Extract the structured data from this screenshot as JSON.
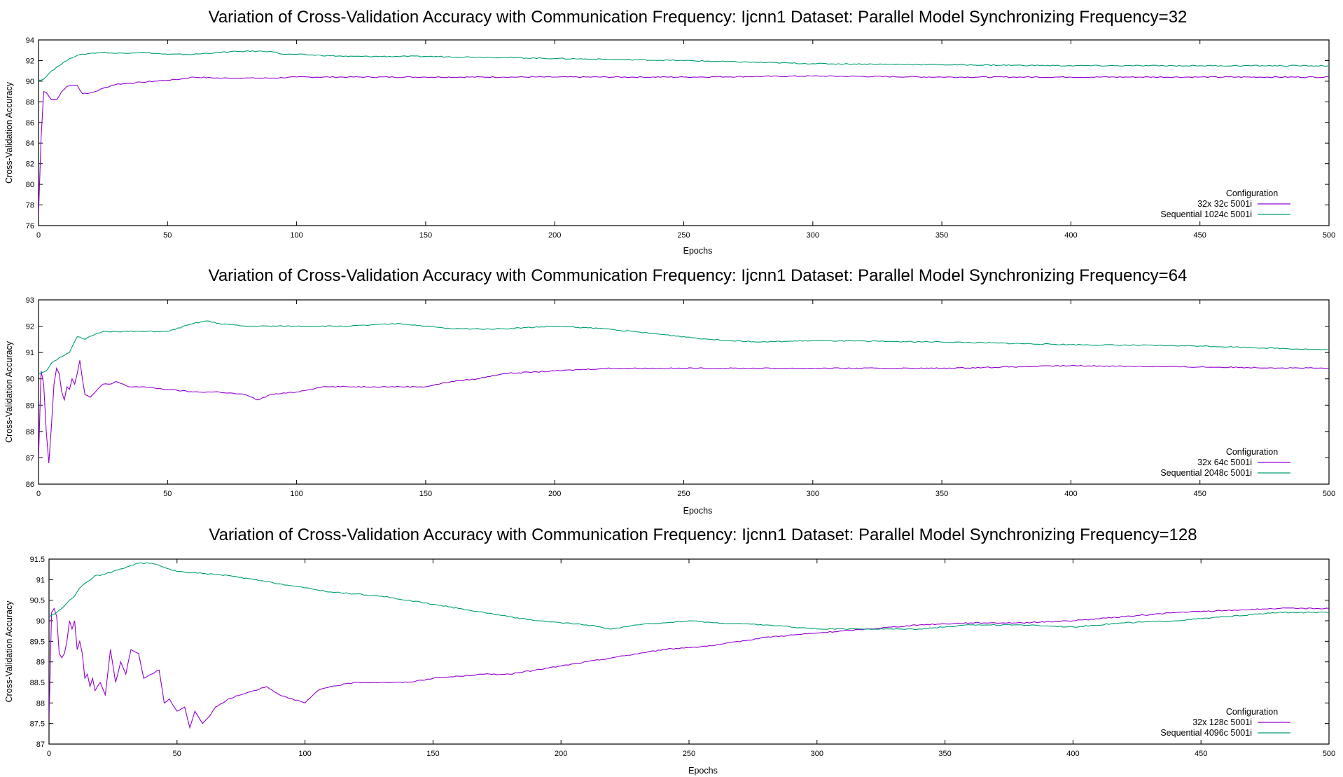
{
  "chart_data": [
    {
      "type": "line",
      "title": "Variation of Cross-Validation Accuracy with Communication Frequency: Ijcnn1 Dataset: Parallel Model Synchronizing Frequency=32",
      "xlabel": "Epochs",
      "ylabel": "Cross-Validation Accuracy",
      "xlim": [
        0,
        500
      ],
      "ylim": [
        76,
        94
      ],
      "xticks": [
        0,
        50,
        100,
        150,
        200,
        250,
        300,
        350,
        400,
        450,
        500
      ],
      "yticks": [
        76,
        78,
        80,
        82,
        84,
        86,
        88,
        90,
        92,
        94
      ],
      "grid": false,
      "legend_title": "Configuration",
      "legend_position": "bottom-right",
      "series": [
        {
          "name": "32x 32c 5001i",
          "color": "#9400d3",
          "x": [
            0,
            1,
            2,
            3,
            5,
            7,
            9,
            11,
            13,
            15,
            17,
            19,
            22,
            26,
            30,
            35,
            40,
            45,
            50,
            55,
            60,
            70,
            80,
            90,
            100,
            120,
            150,
            180,
            200,
            250,
            300,
            350,
            400,
            450,
            500
          ],
          "y": [
            77.0,
            84.5,
            89.0,
            88.9,
            88.2,
            88.2,
            89.0,
            89.5,
            89.6,
            89.6,
            88.8,
            88.8,
            89.0,
            89.4,
            89.7,
            89.8,
            89.9,
            90.0,
            90.1,
            90.2,
            90.4,
            90.3,
            90.3,
            90.3,
            90.4,
            90.4,
            90.4,
            90.4,
            90.4,
            90.4,
            90.5,
            90.4,
            90.4,
            90.4,
            90.4
          ]
        },
        {
          "name": "Sequential 1024c 5001i",
          "color": "#009e73",
          "x": [
            0,
            2,
            5,
            8,
            12,
            15,
            20,
            25,
            30,
            40,
            50,
            60,
            70,
            80,
            90,
            95,
            100,
            120,
            150,
            180,
            200,
            250,
            300,
            350,
            400,
            450,
            500
          ],
          "y": [
            90.1,
            90.2,
            91.0,
            91.5,
            92.2,
            92.5,
            92.7,
            92.8,
            92.7,
            92.8,
            92.6,
            92.6,
            92.8,
            92.9,
            92.9,
            92.6,
            92.6,
            92.4,
            92.4,
            92.3,
            92.2,
            92.0,
            91.7,
            91.6,
            91.5,
            91.5,
            91.5
          ]
        }
      ]
    },
    {
      "type": "line",
      "title": "Variation of Cross-Validation Accuracy with Communication Frequency: Ijcnn1 Dataset: Parallel Model Synchronizing Frequency=64",
      "xlabel": "Epochs",
      "ylabel": "Cross-Validation Accuracy",
      "xlim": [
        0,
        500
      ],
      "ylim": [
        86,
        93
      ],
      "xticks": [
        0,
        50,
        100,
        150,
        200,
        250,
        300,
        350,
        400,
        450,
        500
      ],
      "yticks": [
        86,
        87,
        88,
        89,
        90,
        91,
        92,
        93
      ],
      "grid": false,
      "legend_title": "Configuration",
      "legend_position": "bottom-right",
      "series": [
        {
          "name": "32x 64c 5001i",
          "color": "#9400d3",
          "x": [
            0,
            1,
            2,
            3,
            4,
            5,
            6,
            7,
            8,
            9,
            10,
            11,
            12,
            13,
            14,
            15,
            16,
            17,
            18,
            20,
            22,
            25,
            28,
            30,
            35,
            40,
            50,
            60,
            70,
            80,
            85,
            90,
            100,
            110,
            120,
            130,
            140,
            150,
            160,
            170,
            180,
            200,
            220,
            250,
            300,
            350,
            400,
            450,
            500
          ],
          "y": [
            86.9,
            90.3,
            89.8,
            88.0,
            86.8,
            88.2,
            89.8,
            90.4,
            90.2,
            89.5,
            89.2,
            89.7,
            89.6,
            90.0,
            89.8,
            90.2,
            90.7,
            90.0,
            89.4,
            89.3,
            89.5,
            89.8,
            89.8,
            89.9,
            89.7,
            89.7,
            89.6,
            89.5,
            89.5,
            89.4,
            89.2,
            89.4,
            89.5,
            89.7,
            89.7,
            89.7,
            89.7,
            89.7,
            89.9,
            90.0,
            90.2,
            90.3,
            90.4,
            90.4,
            90.4,
            90.4,
            90.5,
            90.45,
            90.4
          ]
        },
        {
          "name": "Sequential 2048c 5001i",
          "color": "#009e73",
          "x": [
            0,
            3,
            5,
            8,
            12,
            15,
            18,
            22,
            25,
            30,
            40,
            50,
            60,
            65,
            70,
            80,
            100,
            120,
            140,
            150,
            160,
            180,
            200,
            220,
            230,
            250,
            260,
            280,
            300,
            350,
            400,
            450,
            500
          ],
          "y": [
            90.2,
            90.3,
            90.6,
            90.8,
            91.0,
            91.6,
            91.5,
            91.7,
            91.8,
            91.8,
            91.8,
            91.8,
            92.1,
            92.2,
            92.1,
            92.0,
            92.0,
            92.0,
            92.1,
            92.0,
            91.9,
            91.9,
            92.0,
            91.9,
            91.8,
            91.6,
            91.5,
            91.4,
            91.45,
            91.4,
            91.3,
            91.25,
            91.1
          ]
        }
      ]
    },
    {
      "type": "line",
      "title": "Variation of Cross-Validation Accuracy with Communication Frequency: Ijcnn1 Dataset: Parallel Model Synchronizing Frequency=128",
      "xlabel": "Epochs",
      "ylabel": "Cross-Validation Accuracy",
      "xlim": [
        0,
        500
      ],
      "ylim": [
        87,
        91.5
      ],
      "xticks": [
        0,
        50,
        100,
        150,
        200,
        250,
        300,
        350,
        400,
        450,
        500
      ],
      "yticks": [
        87,
        87.5,
        88,
        88.5,
        89,
        89.5,
        90,
        90.5,
        91,
        91.5
      ],
      "grid": false,
      "legend_title": "Configuration",
      "legend_position": "bottom-right",
      "series": [
        {
          "name": "32x 128c 5001i",
          "color": "#9400d3",
          "x": [
            0,
            1,
            2,
            3,
            4,
            5,
            6,
            7,
            8,
            9,
            10,
            11,
            12,
            13,
            14,
            15,
            16,
            17,
            18,
            20,
            22,
            24,
            26,
            28,
            30,
            32,
            35,
            37,
            40,
            43,
            45,
            47,
            50,
            53,
            55,
            57,
            60,
            63,
            65,
            68,
            70,
            75,
            80,
            85,
            90,
            95,
            100,
            105,
            110,
            120,
            130,
            140,
            150,
            160,
            170,
            180,
            190,
            200,
            220,
            240,
            260,
            280,
            300,
            320,
            340,
            360,
            380,
            400,
            420,
            440,
            460,
            480,
            500
          ],
          "y": [
            87.6,
            90.2,
            90.3,
            90.1,
            89.2,
            89.1,
            89.2,
            89.5,
            90.0,
            89.8,
            90.0,
            89.3,
            89.5,
            89.2,
            88.6,
            88.7,
            88.4,
            88.6,
            88.3,
            88.5,
            88.2,
            89.3,
            88.5,
            89.0,
            88.7,
            89.3,
            89.2,
            88.6,
            88.7,
            88.8,
            88.0,
            88.1,
            87.8,
            87.9,
            87.4,
            87.8,
            87.5,
            87.7,
            87.9,
            88.0,
            88.1,
            88.2,
            88.3,
            88.4,
            88.2,
            88.1,
            88.0,
            88.3,
            88.4,
            88.5,
            88.5,
            88.5,
            88.6,
            88.65,
            88.7,
            88.7,
            88.8,
            88.9,
            89.1,
            89.3,
            89.4,
            89.6,
            89.7,
            89.8,
            89.9,
            89.95,
            89.95,
            90.0,
            90.1,
            90.2,
            90.25,
            90.3,
            90.3
          ]
        },
        {
          "name": "Sequential 4096c 5001i",
          "color": "#009e73",
          "x": [
            0,
            3,
            5,
            8,
            10,
            12,
            15,
            18,
            20,
            25,
            30,
            35,
            40,
            45,
            50,
            60,
            70,
            80,
            90,
            100,
            110,
            120,
            130,
            140,
            150,
            160,
            170,
            180,
            190,
            200,
            210,
            220,
            230,
            240,
            250,
            260,
            280,
            300,
            320,
            340,
            360,
            380,
            400,
            420,
            440,
            460,
            480,
            500
          ],
          "y": [
            90.1,
            90.2,
            90.3,
            90.5,
            90.6,
            90.8,
            90.95,
            91.1,
            91.1,
            91.2,
            91.3,
            91.4,
            91.4,
            91.3,
            91.2,
            91.15,
            91.1,
            91.0,
            90.9,
            90.8,
            90.7,
            90.65,
            90.6,
            90.5,
            90.4,
            90.3,
            90.2,
            90.1,
            90.0,
            89.95,
            89.9,
            89.8,
            89.9,
            89.95,
            90.0,
            89.95,
            89.9,
            89.8,
            89.8,
            89.8,
            89.9,
            89.9,
            89.85,
            89.95,
            90.0,
            90.1,
            90.2,
            90.2
          ]
        }
      ]
    }
  ]
}
